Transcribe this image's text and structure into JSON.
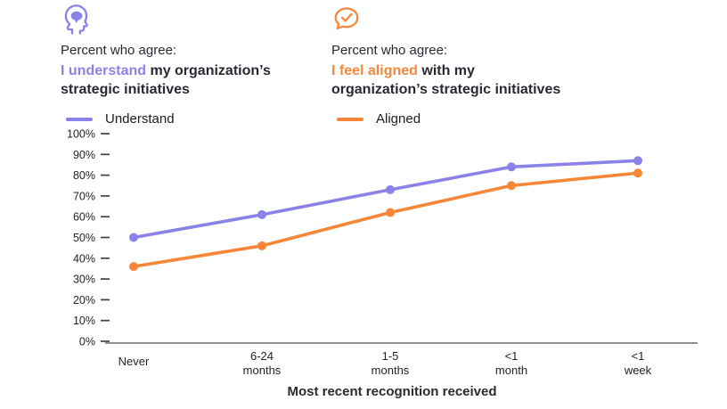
{
  "colors": {
    "purple": "#8a82e8",
    "orange": "#f68738",
    "dark_text": "#2b2834",
    "axis_text": "#232329",
    "axis_line": "#8f8f8f",
    "tick_mark": "#3f3f45"
  },
  "panels": [
    {
      "icon": "head-brain-icon",
      "intro": "Percent who agree:",
      "highlight": "I understand",
      "rest": " my organization’s\nstrategic initiatives",
      "legend_label": "Understand",
      "color": "#8a82e8"
    },
    {
      "icon": "speech-check-icon",
      "intro": "Percent who agree:",
      "highlight": "I feel aligned",
      "rest": " with my\norganization’s strategic initiatives",
      "legend_label": "Aligned",
      "color": "#f68738"
    }
  ],
  "chart_data": {
    "type": "line",
    "categories": [
      "Never",
      "6-24\nmonths",
      "1-5\nmonths",
      "<1\nmonth",
      "<1\nweek"
    ],
    "series": [
      {
        "name": "Understand",
        "color": "#8a82e8",
        "values": [
          50,
          61,
          73,
          84,
          87
        ]
      },
      {
        "name": "Aligned",
        "color": "#f68738",
        "values": [
          36,
          46,
          62,
          75,
          81
        ]
      }
    ],
    "xlabel": "Most recent recognition received",
    "ylabel": "",
    "ylim": [
      0,
      100
    ],
    "ytick_step": 10,
    "ytick_format": "{v}%",
    "grid": false,
    "legend_position": "above-chart"
  }
}
